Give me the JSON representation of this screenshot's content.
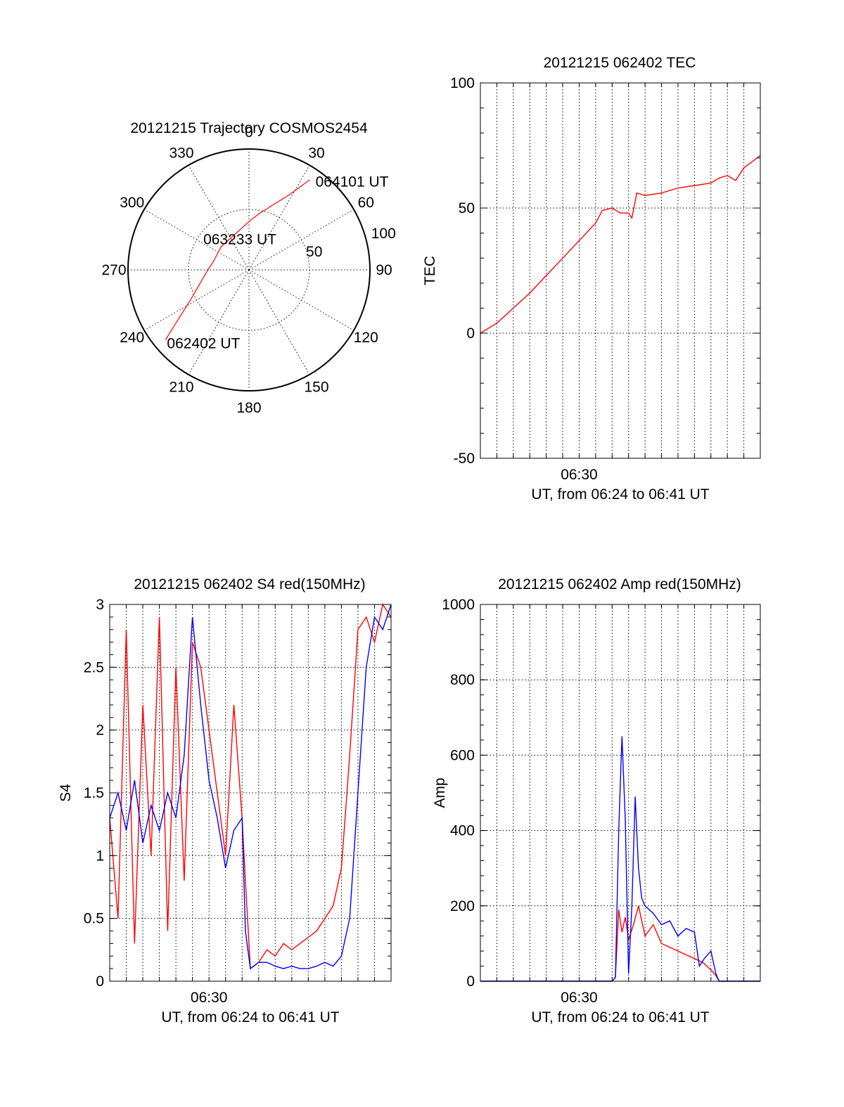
{
  "colors": {
    "red": "#ff0000",
    "blue": "#0000ff",
    "axes": "#000000"
  },
  "chart_data": [
    {
      "id": "polar",
      "type": "scatter",
      "title": "20121215 Trajectory COSMOS2454",
      "azimuth_labels": [
        {
          "az": 0,
          "text": "0"
        },
        {
          "az": 30,
          "text": "30"
        },
        {
          "az": 60,
          "text": "60"
        },
        {
          "az": 90,
          "text": "90"
        },
        {
          "az": 120,
          "text": "120"
        },
        {
          "az": 150,
          "text": "150"
        },
        {
          "az": 180,
          "text": "180"
        },
        {
          "az": 210,
          "text": "210"
        },
        {
          "az": 240,
          "text": "240"
        },
        {
          "az": 270,
          "text": "270"
        },
        {
          "az": 300,
          "text": "300"
        },
        {
          "az": 330,
          "text": "330"
        }
      ],
      "ring_labels": [
        {
          "r": 50,
          "text": "50"
        },
        {
          "r": 100,
          "text": "100"
        }
      ],
      "r_max": 100,
      "trajectory": [
        [
          230,
          90
        ],
        [
          233,
          78
        ],
        [
          237,
          66
        ],
        [
          243,
          54
        ],
        [
          252,
          44
        ],
        [
          265,
          36
        ],
        [
          285,
          30
        ],
        [
          310,
          30
        ],
        [
          340,
          32
        ],
        [
          0,
          40
        ],
        [
          10,
          47
        ],
        [
          20,
          57
        ],
        [
          28,
          70
        ],
        [
          32,
          82
        ],
        [
          34,
          90
        ]
      ],
      "point_labels": [
        {
          "text": "064101 UT",
          "az": 34,
          "r": 90
        },
        {
          "text": "063233 UT",
          "az": 300,
          "r": 10
        },
        {
          "text": "062402 UT",
          "az": 230,
          "r": 90
        }
      ]
    },
    {
      "id": "tec",
      "type": "line",
      "title": "20121215 062402 TEC",
      "ylabel": "TEC",
      "xlabel": "UT, from 06:24 to 06:41 UT",
      "x_unit": "minutes after 06:24",
      "xlim": [
        0,
        17
      ],
      "ylim": [
        -50,
        100
      ],
      "yticks": [
        -50,
        0,
        50,
        100
      ],
      "xticks": [
        {
          "x": 6,
          "label": "06:30"
        }
      ],
      "series": [
        {
          "color": "red",
          "x": [
            0,
            1,
            2,
            3,
            4,
            5,
            6,
            7,
            7.4,
            8,
            8.5,
            9,
            9.2,
            9.5,
            10,
            11,
            12,
            13,
            14,
            14.5,
            15,
            15.5,
            16,
            17
          ],
          "y": [
            0,
            4,
            10,
            16,
            23,
            30,
            37,
            44,
            49,
            50,
            48,
            48,
            46,
            56,
            55,
            56,
            58,
            59,
            60,
            62,
            63,
            61,
            66,
            71
          ]
        }
      ]
    },
    {
      "id": "s4",
      "type": "line",
      "title": "20121215 062402 S4 red(150MHz)",
      "ylabel": "S4",
      "xlabel": "UT, from 06:24 to 06:41 UT",
      "x_unit": "minutes after 06:24",
      "xlim": [
        0,
        17
      ],
      "ylim": [
        0,
        3
      ],
      "yticks": [
        0,
        0.5,
        1,
        1.5,
        2,
        2.5,
        3
      ],
      "ytick_labels": [
        "0",
        "0.5",
        "1",
        "1.5",
        "2",
        "2.5",
        "3"
      ],
      "xticks": [
        {
          "x": 6,
          "label": "06:30"
        }
      ],
      "series": [
        {
          "color": "red",
          "x": [
            0,
            0.5,
            1,
            1.5,
            2,
            2.5,
            3,
            3.5,
            4,
            4.5,
            5,
            5.5,
            6,
            6.5,
            7,
            7.5,
            8,
            8.2,
            8.5,
            9,
            9.5,
            10,
            10.5,
            11,
            11.5,
            12,
            12.5,
            13,
            13.5,
            14,
            14.5,
            15,
            15.5,
            16,
            16.5,
            17
          ],
          "y": [
            1.3,
            0.5,
            2.8,
            0.3,
            2.2,
            1.0,
            2.9,
            0.4,
            2.5,
            0.8,
            2.7,
            2.5,
            2.0,
            1.5,
            1.0,
            2.2,
            1.3,
            0.8,
            0.1,
            0.15,
            0.25,
            0.2,
            0.3,
            0.25,
            0.3,
            0.35,
            0.4,
            0.5,
            0.6,
            0.9,
            1.8,
            2.8,
            2.9,
            2.7,
            3.0,
            2.9
          ]
        },
        {
          "color": "blue",
          "x": [
            0,
            0.5,
            1,
            1.5,
            2,
            2.5,
            3,
            3.5,
            4,
            4.5,
            5,
            5.5,
            6,
            6.5,
            7,
            7.5,
            8,
            8.2,
            8.5,
            9,
            9.5,
            10,
            10.5,
            11,
            11.5,
            12,
            12.5,
            13,
            13.5,
            14,
            14.5,
            15,
            15.5,
            16,
            16.5,
            17
          ],
          "y": [
            1.3,
            1.5,
            1.2,
            1.6,
            1.1,
            1.4,
            1.2,
            1.5,
            1.3,
            1.8,
            2.9,
            2.2,
            1.6,
            1.3,
            0.9,
            1.2,
            1.3,
            0.4,
            0.1,
            0.15,
            0.15,
            0.12,
            0.1,
            0.12,
            0.1,
            0.1,
            0.12,
            0.15,
            0.12,
            0.2,
            0.5,
            1.5,
            2.5,
            2.9,
            2.8,
            3.0
          ]
        }
      ]
    },
    {
      "id": "amp",
      "type": "line",
      "title": "20121215 062402 Amp red(150MHz)",
      "ylabel": "Amp",
      "xlabel": "UT, from 06:24 to 06:41 UT",
      "x_unit": "minutes after 06:24",
      "xlim": [
        0,
        17
      ],
      "ylim": [
        0,
        1000
      ],
      "yticks": [
        0,
        200,
        400,
        600,
        800,
        1000
      ],
      "xticks": [
        {
          "x": 6,
          "label": "06:30"
        }
      ],
      "series": [
        {
          "color": "red",
          "x": [
            0,
            8.0,
            8.2,
            8.4,
            8.6,
            8.8,
            9.0,
            9.3,
            9.6,
            10,
            10.5,
            11,
            11.5,
            12,
            12.5,
            13,
            13.5,
            14,
            14.3,
            14.5,
            17
          ],
          "y": [
            0,
            0,
            10,
            190,
            130,
            170,
            110,
            150,
            200,
            120,
            150,
            100,
            90,
            80,
            70,
            60,
            50,
            30,
            15,
            0,
            0
          ]
        },
        {
          "color": "blue",
          "x": [
            0,
            8.0,
            8.2,
            8.4,
            8.6,
            8.8,
            9.0,
            9.2,
            9.4,
            9.6,
            9.8,
            10,
            10.5,
            11,
            11.5,
            12,
            12.5,
            13,
            13.3,
            13.6,
            14,
            14.3,
            14.5,
            15,
            17
          ],
          "y": [
            0,
            0,
            10,
            400,
            650,
            430,
            20,
            200,
            490,
            300,
            220,
            200,
            180,
            150,
            160,
            120,
            140,
            130,
            40,
            60,
            80,
            20,
            0,
            0,
            0
          ]
        }
      ]
    }
  ]
}
